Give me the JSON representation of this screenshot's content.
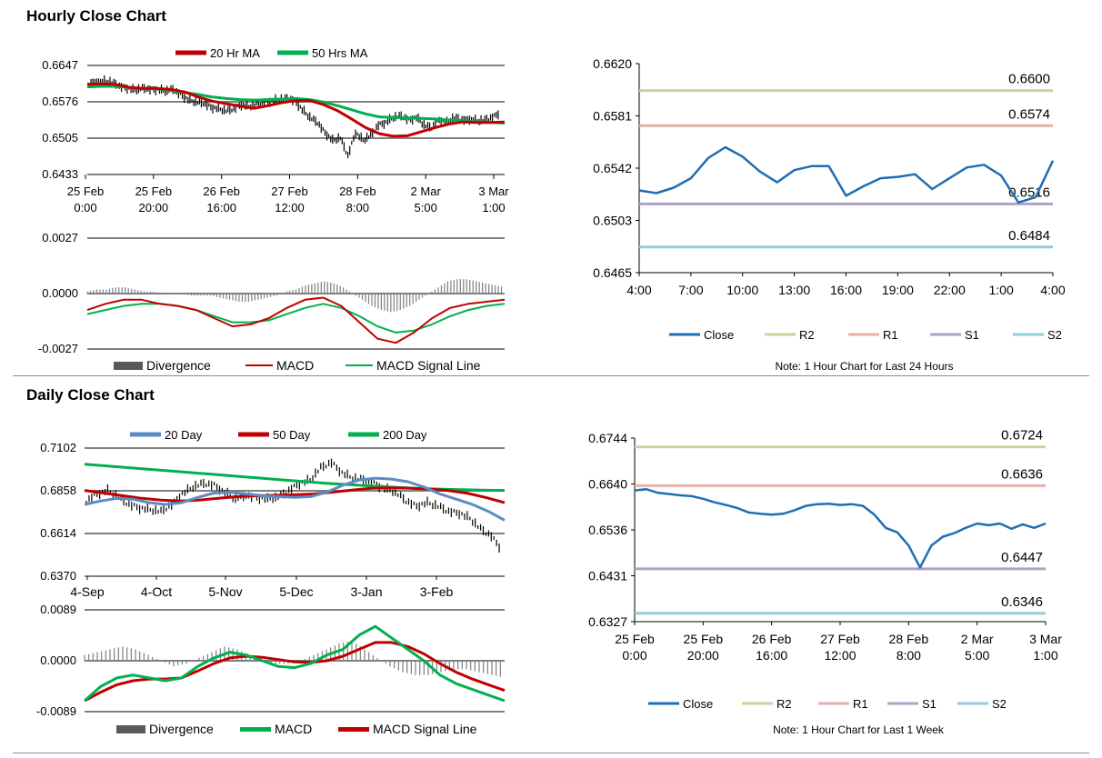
{
  "sections": {
    "hourly_title": "Hourly Close Chart",
    "daily_title": "Daily Close Chart"
  },
  "colors": {
    "ma_red": "#c00000",
    "ma_green": "#00b050",
    "ma_blue": "#5b8cc4",
    "close_blue": "#1f6eb5",
    "r2": "#c4d79b",
    "r1": "#e6b0aa",
    "s1": "#b1a0c7",
    "s2": "#92cddc",
    "divergence": "#7f7f7f",
    "grid": "#808080"
  },
  "chart_data": [
    {
      "id": "hourly_price",
      "type": "line",
      "legend": [
        "20 Hr MA",
        "50 Hrs MA"
      ],
      "ylim": [
        0.6433,
        0.6647
      ],
      "yticks": [
        "0.6647",
        "0.6576",
        "0.6505",
        "0.6433"
      ],
      "xticks": [
        [
          "25 Feb",
          "0:00"
        ],
        [
          "25 Feb",
          "20:00"
        ],
        [
          "26 Feb",
          "16:00"
        ],
        [
          "27 Feb",
          "12:00"
        ],
        [
          "28 Feb",
          "8:00"
        ],
        [
          "2 Mar",
          "5:00"
        ],
        [
          "3 Mar",
          "1:00"
        ]
      ],
      "price_series": [
        0.6612,
        0.6615,
        0.6616,
        0.6614,
        0.6606,
        0.6603,
        0.6598,
        0.6602,
        0.66,
        0.66,
        0.6596,
        0.66,
        0.659,
        0.658,
        0.6575,
        0.6573,
        0.6565,
        0.6562,
        0.6558,
        0.6562,
        0.657,
        0.6566,
        0.6572,
        0.6575,
        0.6578,
        0.658,
        0.6582,
        0.6578,
        0.656,
        0.6545,
        0.6535,
        0.6515,
        0.65,
        0.6505,
        0.647,
        0.6515,
        0.65,
        0.651,
        0.653,
        0.6535,
        0.6545,
        0.6548,
        0.654,
        0.6545,
        0.653,
        0.6525,
        0.654,
        0.6535,
        0.6545,
        0.654,
        0.6542,
        0.6538,
        0.654,
        0.6545,
        0.6555
      ],
      "series": [
        {
          "name": "20 Hr MA",
          "values": [
            0.661,
            0.6611,
            0.661,
            0.6604,
            0.6602,
            0.6602,
            0.66,
            0.6595,
            0.6585,
            0.6577,
            0.6572,
            0.6567,
            0.6563,
            0.6568,
            0.6574,
            0.6578,
            0.6578,
            0.657,
            0.6558,
            0.6542,
            0.6525,
            0.6513,
            0.6508,
            0.6509,
            0.6517,
            0.6525,
            0.6532,
            0.6536,
            0.6535,
            0.6535,
            0.6536
          ]
        },
        {
          "name": "50 Hrs MA",
          "values": [
            0.6605,
            0.6606,
            0.6606,
            0.6604,
            0.6602,
            0.6601,
            0.6598,
            0.6594,
            0.659,
            0.6585,
            0.6582,
            0.658,
            0.6579,
            0.658,
            0.6581,
            0.6582,
            0.658,
            0.6575,
            0.6568,
            0.656,
            0.6552,
            0.6546,
            0.6545,
            0.6544,
            0.6543,
            0.6542,
            0.654,
            0.6538,
            0.6536,
            0.6535,
            0.6534
          ]
        }
      ]
    },
    {
      "id": "hourly_macd",
      "type": "line",
      "legend": [
        "Divergence",
        "MACD",
        "MACD Signal Line"
      ],
      "ylim": [
        -0.0027,
        0.0027
      ],
      "yticks": [
        "0.0027",
        "0.0000",
        "-0.0027"
      ],
      "divergence": [
        0.0001,
        0.0002,
        0.0002,
        0.0003,
        0.0003,
        0.0002,
        0.0001,
        0.0001,
        0.0,
        0.0,
        0.0,
        -0.0001,
        -0.0001,
        -0.0001,
        -0.0002,
        -0.0003,
        -0.0004,
        -0.0004,
        -0.0003,
        -0.0002,
        -0.0001,
        0.0001,
        0.0002,
        0.0004,
        0.0005,
        0.0006,
        0.0005,
        0.0003,
        0.0,
        -0.0003,
        -0.0006,
        -0.0008,
        -0.0009,
        -0.0008,
        -0.0006,
        -0.0003,
        0.0,
        0.0003,
        0.0006,
        0.0007,
        0.0007,
        0.0006,
        0.0005,
        0.0004,
        0.0003
      ],
      "series": [
        {
          "name": "MACD",
          "values": [
            -0.0008,
            -0.0005,
            -0.0003,
            -0.0003,
            -0.0005,
            -0.0006,
            -0.0008,
            -0.0012,
            -0.0016,
            -0.0015,
            -0.0012,
            -0.0007,
            -0.0003,
            -0.0002,
            -0.0006,
            -0.0014,
            -0.0022,
            -0.0024,
            -0.0019,
            -0.0012,
            -0.0007,
            -0.0005,
            -0.0004,
            -0.0003
          ]
        },
        {
          "name": "MACD Signal Line",
          "values": [
            -0.001,
            -0.0008,
            -0.0006,
            -0.0005,
            -0.0005,
            -0.0006,
            -0.0008,
            -0.0011,
            -0.0014,
            -0.0014,
            -0.0013,
            -0.001,
            -0.0007,
            -0.0005,
            -0.0007,
            -0.0011,
            -0.0016,
            -0.0019,
            -0.0018,
            -0.0015,
            -0.0011,
            -0.0008,
            -0.0006,
            -0.0005
          ]
        }
      ]
    },
    {
      "id": "hourly_close_24h",
      "type": "line",
      "ylim": [
        0.6465,
        0.662
      ],
      "yticks": [
        "0.6620",
        "0.6581",
        "0.6542",
        "0.6503",
        "0.6465"
      ],
      "xticks": [
        "4:00",
        "7:00",
        "10:00",
        "13:00",
        "16:00",
        "19:00",
        "22:00",
        "1:00",
        "4:00"
      ],
      "levels": [
        {
          "name": "R2",
          "value": 0.66,
          "label": "0.6600"
        },
        {
          "name": "R1",
          "value": 0.6574,
          "label": "0.6574"
        },
        {
          "name": "S1",
          "value": 0.6516,
          "label": "0.6516"
        },
        {
          "name": "S2",
          "value": 0.6484,
          "label": "0.6484"
        }
      ],
      "series": [
        {
          "name": "Close",
          "values": [
            0.6526,
            0.6524,
            0.6528,
            0.6535,
            0.655,
            0.6558,
            0.6551,
            0.654,
            0.6532,
            0.6541,
            0.6544,
            0.6544,
            0.6522,
            0.6529,
            0.6535,
            0.6536,
            0.6538,
            0.6527,
            0.6535,
            0.6543,
            0.6545,
            0.6537,
            0.6517,
            0.6521,
            0.6548
          ]
        }
      ],
      "legend": [
        "Close",
        "R2",
        "R1",
        "S1",
        "S2"
      ],
      "note": "Note: 1 Hour Chart for Last 24 Hours"
    },
    {
      "id": "daily_price",
      "type": "line",
      "legend": [
        "20 Day",
        "50 Day",
        "200 Day"
      ],
      "ylim": [
        0.637,
        0.7102
      ],
      "yticks": [
        "0.7102",
        "0.6858",
        "0.6614",
        "0.6370"
      ],
      "xticks": [
        "4-Sep",
        "4-Oct",
        "5-Nov",
        "5-Dec",
        "3-Jan",
        "3-Feb"
      ],
      "price_series": [
        0.68,
        0.684,
        0.686,
        0.682,
        0.678,
        0.676,
        0.675,
        0.674,
        0.678,
        0.684,
        0.688,
        0.69,
        0.689,
        0.685,
        0.681,
        0.683,
        0.682,
        0.681,
        0.682,
        0.686,
        0.69,
        0.692,
        0.699,
        0.702,
        0.696,
        0.693,
        0.692,
        0.69,
        0.687,
        0.685,
        0.68,
        0.677,
        0.679,
        0.677,
        0.674,
        0.673,
        0.67,
        0.664,
        0.66,
        0.652
      ],
      "series": [
        {
          "name": "20 Day",
          "values": [
            0.678,
            0.68,
            0.6815,
            0.681,
            0.679,
            0.678,
            0.679,
            0.682,
            0.6845,
            0.685,
            0.684,
            0.683,
            0.6825,
            0.682,
            0.6825,
            0.685,
            0.689,
            0.692,
            0.693,
            0.6925,
            0.691,
            0.688,
            0.684,
            0.681,
            0.678,
            0.674,
            0.669
          ]
        },
        {
          "name": "50 Day",
          "values": [
            0.686,
            0.6845,
            0.683,
            0.6815,
            0.6805,
            0.68,
            0.6805,
            0.6815,
            0.6825,
            0.683,
            0.6832,
            0.6835,
            0.684,
            0.685,
            0.6862,
            0.6872,
            0.6875,
            0.6873,
            0.6868,
            0.686,
            0.6845,
            0.682,
            0.679
          ]
        },
        {
          "name": "200 Day",
          "values": [
            0.701,
            0.7,
            0.699,
            0.698,
            0.697,
            0.696,
            0.695,
            0.694,
            0.693,
            0.692,
            0.691,
            0.69,
            0.6893,
            0.6885,
            0.6878,
            0.6872,
            0.6868,
            0.6865,
            0.6862,
            0.686
          ]
        }
      ]
    },
    {
      "id": "daily_macd",
      "type": "line",
      "legend": [
        "Divergence",
        "MACD",
        "MACD Signal Line"
      ],
      "ylim": [
        -0.0089,
        0.0089
      ],
      "yticks": [
        "0.0089",
        "0.0000",
        "-0.0089"
      ],
      "divergence": [
        0.001,
        0.0015,
        0.002,
        0.0025,
        0.002,
        0.001,
        0.0,
        -0.001,
        -0.0005,
        0.0005,
        0.0015,
        0.0025,
        0.002,
        0.001,
        0.0,
        -0.0005,
        -0.0005,
        0.0,
        0.001,
        0.002,
        0.003,
        0.0035,
        0.002,
        0.0005,
        -0.001,
        -0.002,
        -0.0025,
        -0.0025,
        -0.002,
        -0.0015,
        -0.0015,
        -0.002,
        -0.0025,
        -0.003
      ],
      "series": [
        {
          "name": "MACD",
          "values": [
            -0.007,
            -0.0045,
            -0.003,
            -0.0025,
            -0.003,
            -0.0035,
            -0.003,
            -0.001,
            0.0005,
            0.0015,
            0.001,
            0.0,
            -0.001,
            -0.0012,
            -0.0005,
            0.001,
            0.002,
            0.0045,
            0.006,
            0.004,
            0.002,
            0.0,
            -0.0025,
            -0.004,
            -0.005,
            -0.006,
            -0.007
          ]
        },
        {
          "name": "MACD Signal Line",
          "values": [
            -0.007,
            -0.0055,
            -0.0042,
            -0.0035,
            -0.0032,
            -0.0032,
            -0.003,
            -0.0018,
            -0.0005,
            0.0005,
            0.0008,
            0.0006,
            0.0002,
            -0.0002,
            -0.0003,
            0.0,
            0.0008,
            0.002,
            0.0032,
            0.0032,
            0.0025,
            0.0012,
            -0.0005,
            -0.002,
            -0.0032,
            -0.0042,
            -0.0052
          ]
        }
      ]
    },
    {
      "id": "daily_close_week",
      "type": "line",
      "ylim": [
        0.6327,
        0.6744
      ],
      "yticks": [
        "0.6744",
        "0.6640",
        "0.6536",
        "0.6431",
        "0.6327"
      ],
      "xticks": [
        [
          "25 Feb",
          "0:00"
        ],
        [
          "25 Feb",
          "20:00"
        ],
        [
          "26 Feb",
          "16:00"
        ],
        [
          "27 Feb",
          "12:00"
        ],
        [
          "28 Feb",
          "8:00"
        ],
        [
          "2 Mar",
          "5:00"
        ],
        [
          "3 Mar",
          "1:00"
        ]
      ],
      "levels": [
        {
          "name": "R2",
          "value": 0.6724,
          "label": "0.6724"
        },
        {
          "name": "R1",
          "value": 0.6636,
          "label": "0.6636"
        },
        {
          "name": "S1",
          "value": 0.6447,
          "label": "0.6447"
        },
        {
          "name": "S2",
          "value": 0.6346,
          "label": "0.6346"
        }
      ],
      "series": [
        {
          "name": "Close",
          "values": [
            0.6625,
            0.6628,
            0.662,
            0.6617,
            0.6614,
            0.6612,
            0.6606,
            0.6598,
            0.6592,
            0.6585,
            0.6575,
            0.6572,
            0.657,
            0.6572,
            0.658,
            0.659,
            0.6594,
            0.6595,
            0.6592,
            0.6594,
            0.659,
            0.657,
            0.654,
            0.653,
            0.65,
            0.645,
            0.65,
            0.652,
            0.6528,
            0.654,
            0.655,
            0.6546,
            0.655,
            0.6538,
            0.6548,
            0.654,
            0.655
          ]
        }
      ],
      "legend": [
        "Close",
        "R2",
        "R1",
        "S1",
        "S2"
      ],
      "note": "Note: 1 Hour Chart for Last 1 Week"
    }
  ]
}
